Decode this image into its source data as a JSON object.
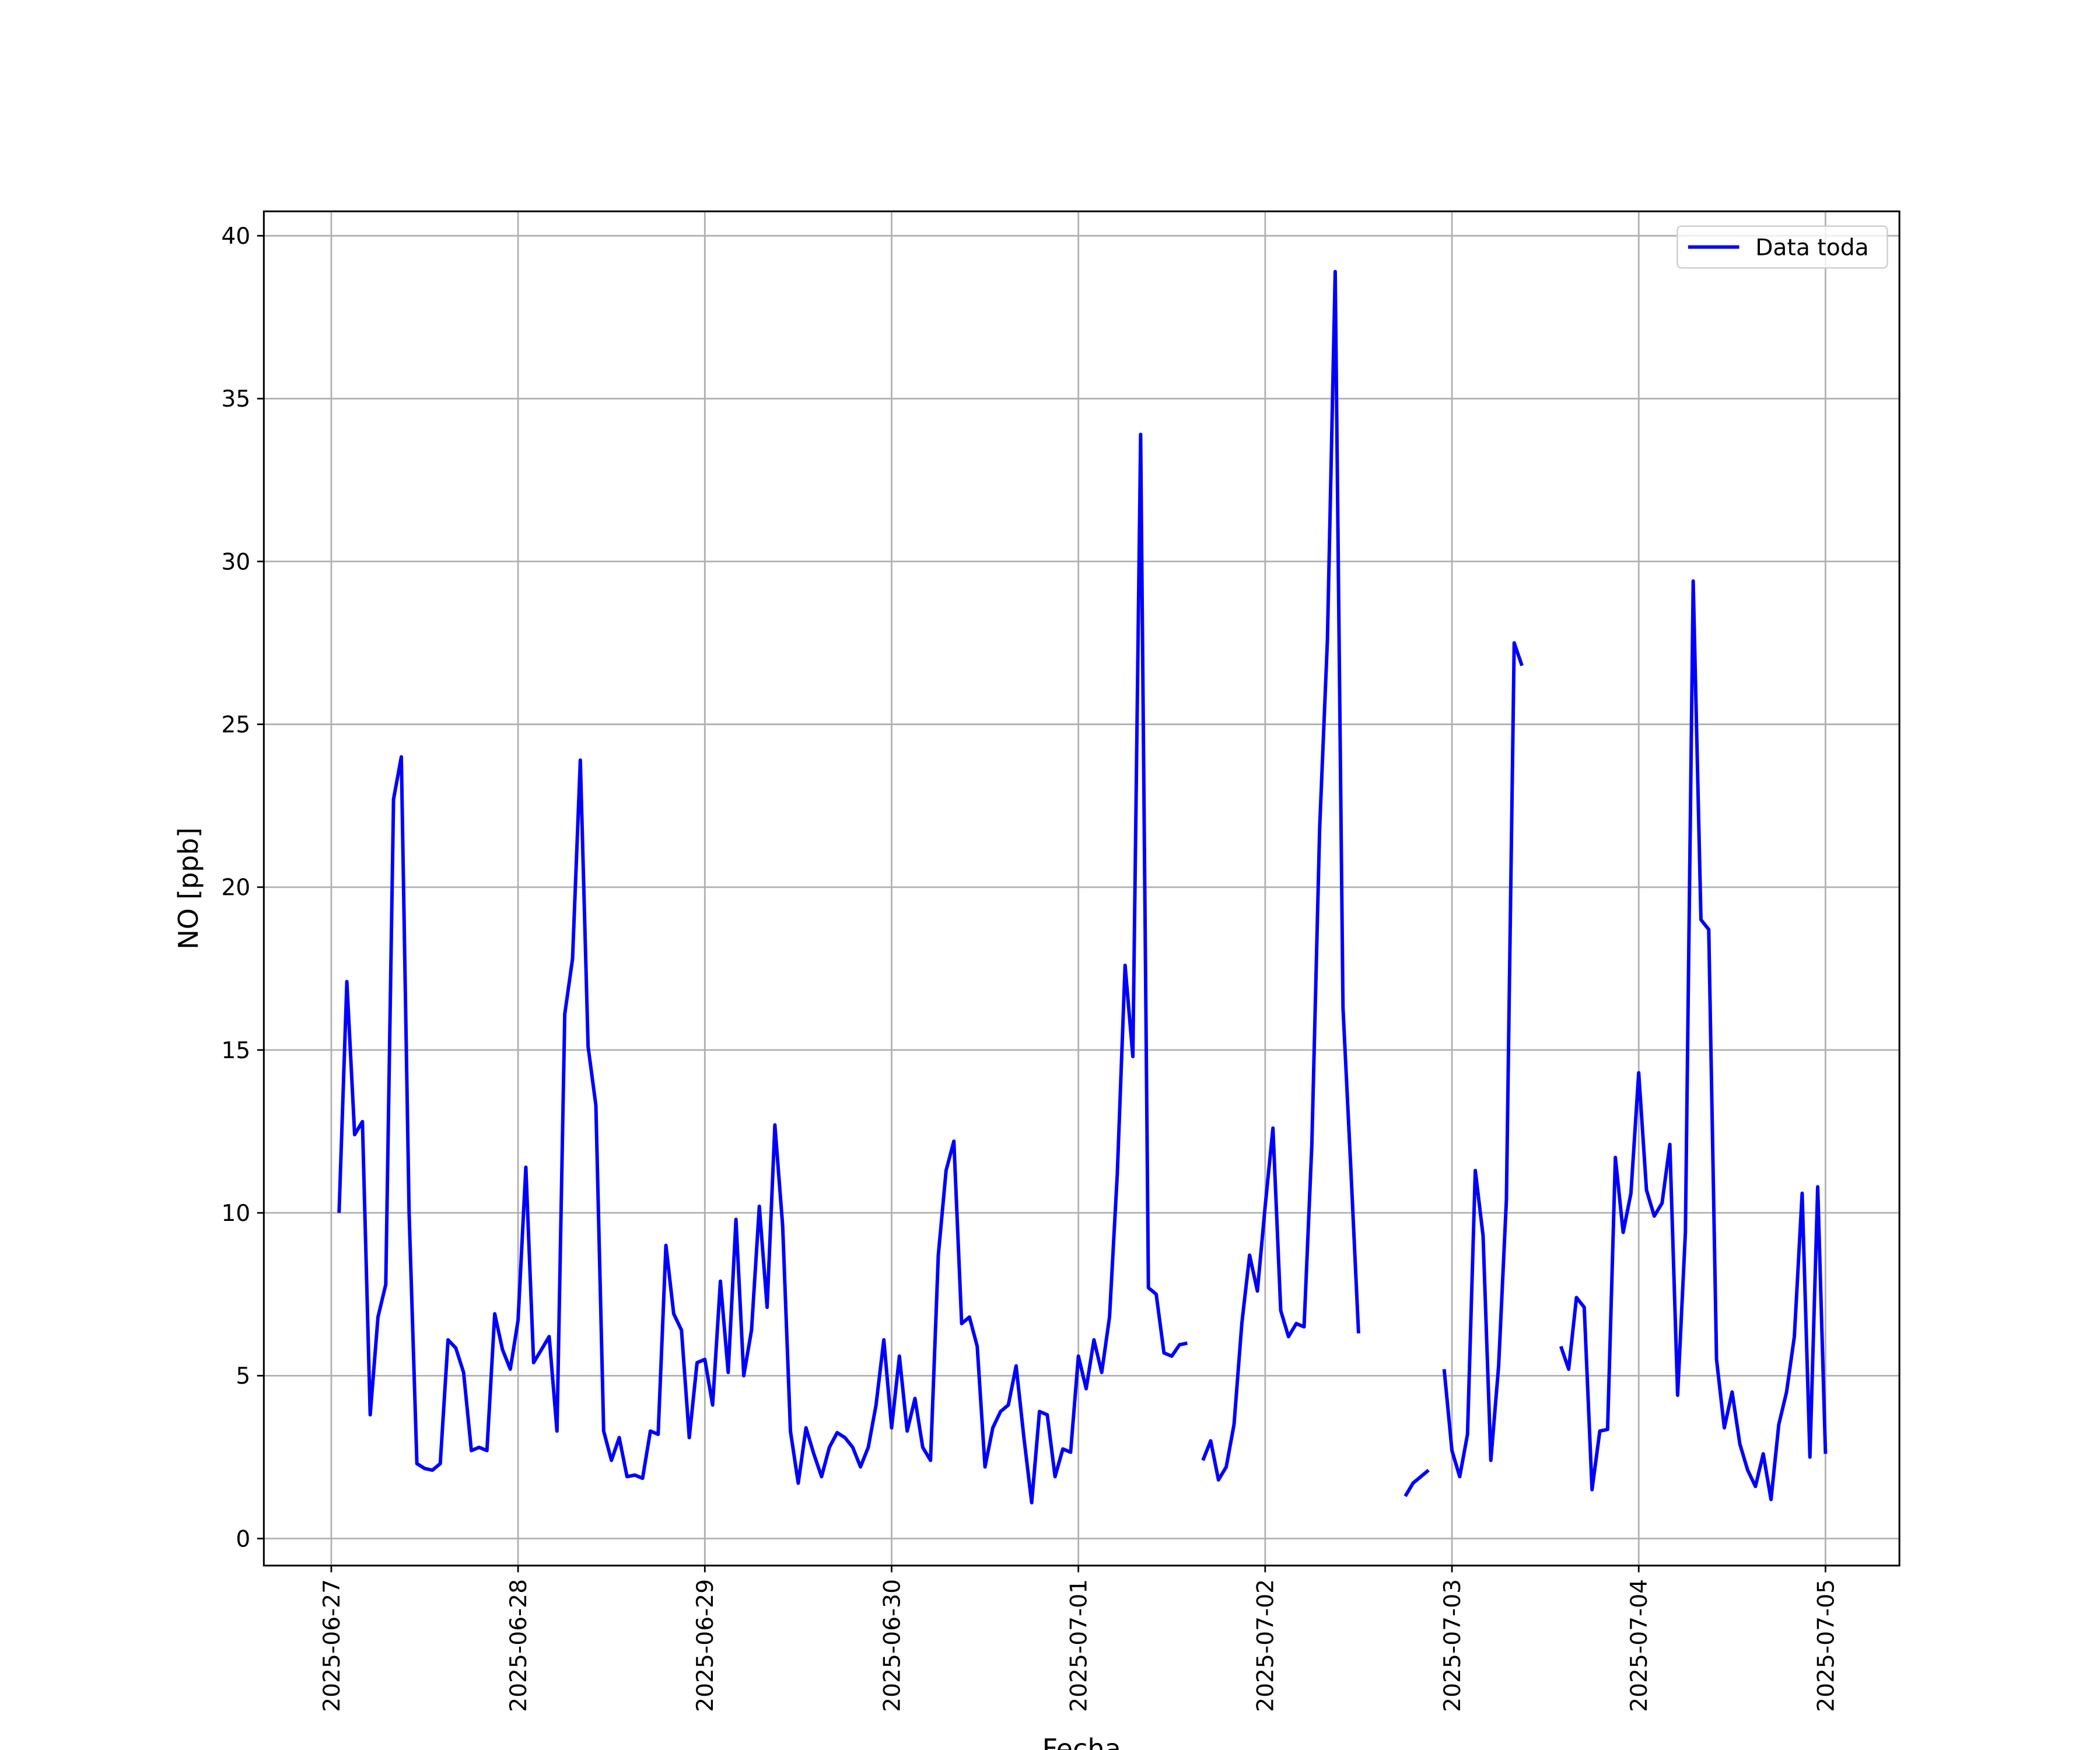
{
  "chart_data": {
    "type": "line",
    "xlabel": "Fecha",
    "ylabel": "NO [ppb]",
    "x": [
      "2025-06-27 01:00",
      "2025-06-27 02:00",
      "2025-06-27 03:00",
      "2025-06-27 04:00",
      "2025-06-27 05:00",
      "2025-06-27 06:00",
      "2025-06-27 07:00",
      "2025-06-27 08:00",
      "2025-06-27 09:00",
      "2025-06-27 10:00",
      "2025-06-27 11:00",
      "2025-06-27 12:00",
      "2025-06-27 13:00",
      "2025-06-27 14:00",
      "2025-06-27 15:00",
      "2025-06-27 16:00",
      "2025-06-27 17:00",
      "2025-06-27 18:00",
      "2025-06-27 19:00",
      "2025-06-27 20:00",
      "2025-06-27 21:00",
      "2025-06-27 22:00",
      "2025-06-27 23:00",
      "2025-06-28 00:00",
      "2025-06-28 01:00",
      "2025-06-28 02:00",
      "2025-06-28 03:00",
      "2025-06-28 04:00",
      "2025-06-28 05:00",
      "2025-06-28 06:00",
      "2025-06-28 07:00",
      "2025-06-28 08:00",
      "2025-06-28 09:00",
      "2025-06-28 10:00",
      "2025-06-28 11:00",
      "2025-06-28 12:00",
      "2025-06-28 13:00",
      "2025-06-28 14:00",
      "2025-06-28 15:00",
      "2025-06-28 16:00",
      "2025-06-28 17:00",
      "2025-06-28 18:00",
      "2025-06-28 19:00",
      "2025-06-28 20:00",
      "2025-06-28 21:00",
      "2025-06-28 22:00",
      "2025-06-28 23:00",
      "2025-06-29 00:00",
      "2025-06-29 01:00",
      "2025-06-29 02:00",
      "2025-06-29 03:00",
      "2025-06-29 04:00",
      "2025-06-29 05:00",
      "2025-06-29 06:00",
      "2025-06-29 07:00",
      "2025-06-29 08:00",
      "2025-06-29 09:00",
      "2025-06-29 10:00",
      "2025-06-29 11:00",
      "2025-06-29 12:00",
      "2025-06-29 13:00",
      "2025-06-29 14:00",
      "2025-06-29 15:00",
      "2025-06-29 16:00",
      "2025-06-29 17:00",
      "2025-06-29 18:00",
      "2025-06-29 19:00",
      "2025-06-29 20:00",
      "2025-06-29 21:00",
      "2025-06-29 22:00",
      "2025-06-29 23:00",
      "2025-06-30 00:00",
      "2025-06-30 01:00",
      "2025-06-30 02:00",
      "2025-06-30 03:00",
      "2025-06-30 04:00",
      "2025-06-30 05:00",
      "2025-06-30 06:00",
      "2025-06-30 07:00",
      "2025-06-30 08:00",
      "2025-06-30 09:00",
      "2025-06-30 10:00",
      "2025-06-30 11:00",
      "2025-06-30 12:00",
      "2025-06-30 13:00",
      "2025-06-30 14:00",
      "2025-06-30 15:00",
      "2025-06-30 16:00",
      "2025-06-30 17:00",
      "2025-06-30 18:00",
      "2025-06-30 19:00",
      "2025-06-30 20:00",
      "2025-06-30 21:00",
      "2025-06-30 22:00",
      "2025-06-30 23:00",
      "2025-07-01 00:00",
      "2025-07-01 01:00",
      "2025-07-01 02:00",
      "2025-07-01 03:00",
      "2025-07-01 04:00",
      "2025-07-01 05:00",
      "2025-07-01 06:00",
      "2025-07-01 07:00",
      "2025-07-01 08:00",
      "2025-07-01 09:00",
      "2025-07-01 10:00",
      "2025-07-01 11:00",
      "2025-07-01 12:00",
      "2025-07-01 13:00",
      "2025-07-01 14:00",
      "2025-07-01 15:00",
      "2025-07-01 16:00",
      "2025-07-01 17:00",
      "2025-07-01 18:00",
      "2025-07-01 19:00",
      "2025-07-01 20:00",
      "2025-07-01 21:00",
      "2025-07-01 22:00",
      "2025-07-01 23:00",
      "2025-07-02 00:00",
      "2025-07-02 01:00",
      "2025-07-02 02:00",
      "2025-07-02 03:00",
      "2025-07-02 04:00",
      "2025-07-02 05:00",
      "2025-07-02 06:00",
      "2025-07-02 07:00",
      "2025-07-02 08:00",
      "2025-07-02 09:00",
      "2025-07-02 10:00",
      "2025-07-02 11:00",
      "2025-07-02 12:00",
      "2025-07-02 13:00",
      "2025-07-02 14:00",
      "2025-07-02 15:00",
      "2025-07-02 16:00",
      "2025-07-02 17:00",
      "2025-07-02 18:00",
      "2025-07-02 19:00",
      "2025-07-02 20:00",
      "2025-07-02 21:00",
      "2025-07-02 22:00",
      "2025-07-02 23:00",
      "2025-07-03 00:00",
      "2025-07-03 01:00",
      "2025-07-03 02:00",
      "2025-07-03 03:00",
      "2025-07-03 04:00",
      "2025-07-03 05:00",
      "2025-07-03 06:00",
      "2025-07-03 07:00",
      "2025-07-03 08:00",
      "2025-07-03 09:00",
      "2025-07-03 10:00",
      "2025-07-03 11:00",
      "2025-07-03 12:00",
      "2025-07-03 13:00",
      "2025-07-03 14:00",
      "2025-07-03 15:00",
      "2025-07-03 16:00",
      "2025-07-03 17:00",
      "2025-07-03 18:00",
      "2025-07-03 19:00",
      "2025-07-03 20:00",
      "2025-07-03 21:00",
      "2025-07-03 22:00",
      "2025-07-03 23:00",
      "2025-07-04 00:00",
      "2025-07-04 01:00",
      "2025-07-04 02:00",
      "2025-07-04 03:00",
      "2025-07-04 04:00",
      "2025-07-04 05:00",
      "2025-07-04 06:00",
      "2025-07-04 07:00",
      "2025-07-04 08:00",
      "2025-07-04 09:00",
      "2025-07-04 10:00",
      "2025-07-04 11:00",
      "2025-07-04 12:00",
      "2025-07-04 13:00",
      "2025-07-04 14:00",
      "2025-07-04 15:00",
      "2025-07-04 16:00",
      "2025-07-04 17:00",
      "2025-07-04 18:00",
      "2025-07-04 19:00",
      "2025-07-04 20:00",
      "2025-07-04 21:00",
      "2025-07-04 22:00",
      "2025-07-04 23:00",
      "2025-07-05 00:00"
    ],
    "series": [
      {
        "name": "Data toda",
        "color": "#0000ff",
        "values": [
          10.0,
          17.1,
          12.4,
          12.8,
          3.8,
          6.8,
          7.8,
          22.7,
          24.0,
          10.0,
          2.3,
          2.15,
          2.1,
          2.3,
          6.1,
          5.85,
          5.1,
          2.7,
          2.8,
          2.7,
          6.9,
          5.8,
          5.2,
          6.7,
          11.4,
          5.4,
          5.8,
          6.2,
          3.3,
          16.1,
          17.8,
          23.9,
          15.1,
          13.3,
          3.3,
          2.4,
          3.1,
          1.9,
          1.95,
          1.85,
          3.3,
          3.2,
          9.0,
          6.9,
          6.4,
          3.1,
          5.4,
          5.5,
          4.1,
          7.9,
          5.1,
          9.8,
          5.0,
          6.4,
          10.2,
          7.1,
          12.7,
          9.6,
          3.3,
          1.7,
          3.4,
          2.6,
          1.9,
          2.8,
          3.25,
          3.1,
          2.8,
          2.2,
          2.8,
          4.1,
          6.1,
          3.4,
          5.6,
          3.3,
          4.3,
          2.8,
          2.4,
          8.7,
          11.3,
          12.2,
          6.6,
          6.8,
          5.9,
          2.2,
          3.4,
          3.9,
          4.1,
          5.3,
          3.1,
          1.1,
          3.9,
          3.8,
          1.9,
          2.75,
          2.65,
          5.6,
          4.6,
          6.1,
          5.1,
          6.8,
          11.2,
          17.6,
          14.8,
          33.9,
          7.7,
          7.5,
          5.7,
          5.6,
          5.95,
          6.0,
          null,
          2.4,
          3.0,
          1.8,
          2.2,
          3.5,
          6.6,
          8.7,
          7.6,
          10.2,
          12.6,
          7.0,
          6.2,
          6.6,
          6.5,
          12.1,
          21.8,
          27.6,
          38.9,
          16.3,
          11.4,
          6.3,
          null,
          null,
          null,
          null,
          null,
          1.3,
          1.7,
          1.9,
          2.1,
          null,
          5.2,
          2.7,
          1.9,
          3.2,
          11.3,
          9.3,
          2.4,
          5.3,
          10.4,
          27.5,
          26.8,
          null,
          null,
          null,
          null,
          5.9,
          5.2,
          7.4,
          7.1,
          1.5,
          3.3,
          3.35,
          11.7,
          9.4,
          10.6,
          14.3,
          10.7,
          9.9,
          10.3,
          12.1,
          4.4,
          9.4,
          29.4,
          19.0,
          18.7,
          5.5,
          3.4,
          4.5,
          2.9,
          2.1,
          1.6,
          2.6,
          1.2,
          3.5,
          4.5,
          6.2,
          10.6,
          2.5,
          10.8,
          2.6
        ]
      }
    ],
    "xlim": [
      "2025-06-26 15:20",
      "2025-07-05 09:30"
    ],
    "xticks": [
      "2025-06-27",
      "2025-06-28",
      "2025-06-29",
      "2025-06-30",
      "2025-07-01",
      "2025-07-02",
      "2025-07-03",
      "2025-07-04",
      "2025-07-05"
    ],
    "ylim": [
      -0.83,
      40.75
    ],
    "yticks": [
      0,
      5,
      10,
      15,
      20,
      25,
      30,
      35,
      40
    ],
    "grid": true,
    "legend": "upper right"
  }
}
